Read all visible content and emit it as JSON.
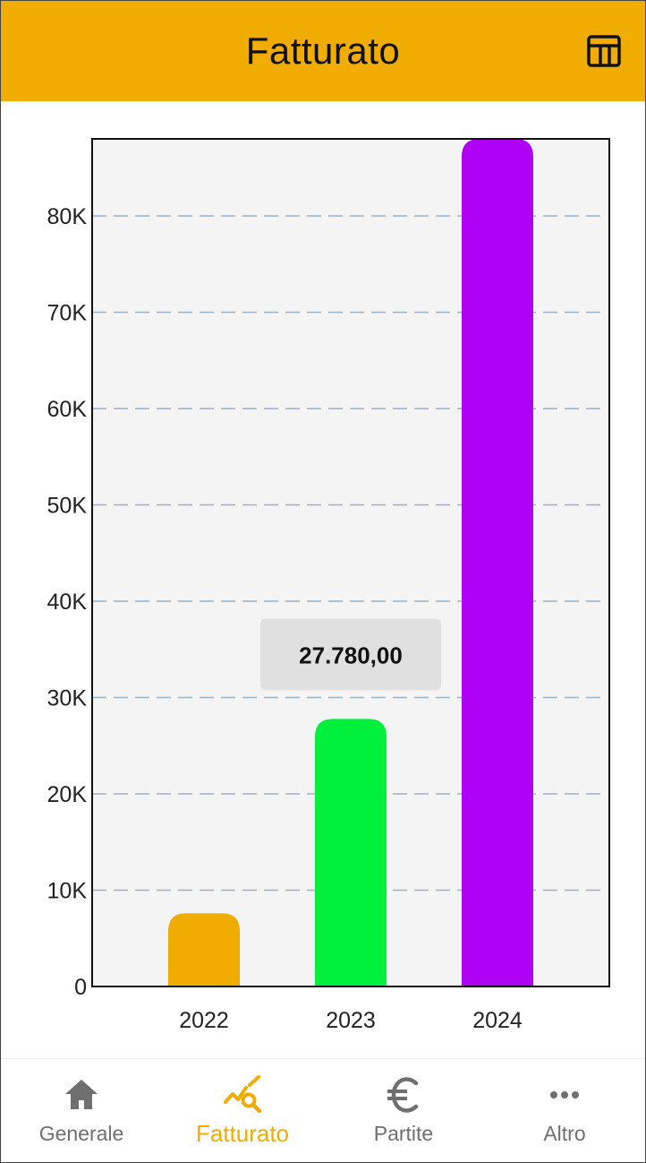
{
  "colors": {
    "accent": "#F0AC00",
    "inactive": "#6F6F6F",
    "plot_background": "#F4F4F4",
    "grid": "#9FB0C0",
    "tooltip_background": "#E0E0E0"
  },
  "header": {
    "title": "Fatturato",
    "action_icon": "table-view-icon"
  },
  "chart_data": {
    "type": "bar",
    "categories": [
      "2022",
      "2023",
      "2024"
    ],
    "values": [
      7600,
      27780,
      88000
    ],
    "colors": [
      "#F0AC00",
      "#00F03C",
      "#AE00F2"
    ],
    "ylim": [
      0,
      88000
    ],
    "yticks": [
      0,
      10000,
      20000,
      30000,
      40000,
      50000,
      60000,
      70000,
      80000
    ],
    "ytick_labels": [
      "0",
      "10K",
      "20K",
      "30K",
      "40K",
      "50K",
      "60K",
      "70K",
      "80K"
    ],
    "grid": "horizontal-dashed",
    "tooltip": {
      "category": "2023",
      "text": "27.780,00"
    }
  },
  "nav": {
    "active": "fatturato",
    "items": [
      {
        "id": "generale",
        "label": "Generale",
        "icon": "home-icon"
      },
      {
        "id": "fatturato",
        "label": "Fatturato",
        "icon": "analytics-icon"
      },
      {
        "id": "partite",
        "label": "Partite",
        "icon": "euro-icon"
      },
      {
        "id": "altro",
        "label": "Altro",
        "icon": "more-horizontal-icon"
      }
    ]
  }
}
